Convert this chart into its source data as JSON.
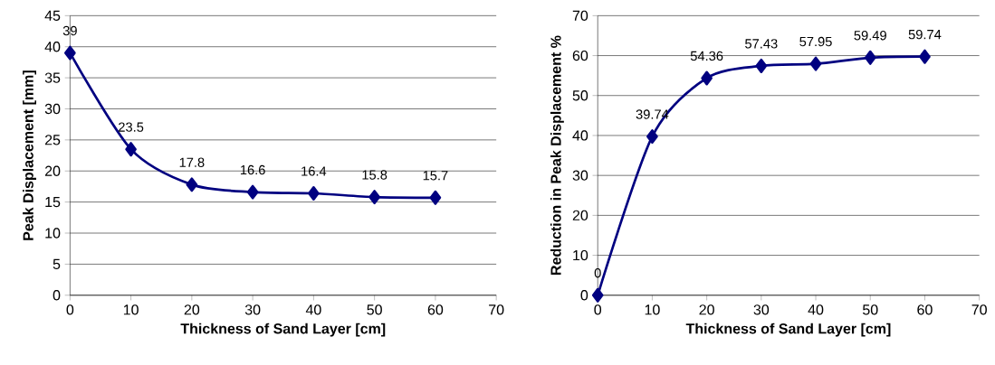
{
  "chart_data": [
    {
      "type": "line",
      "xlabel": "Thickness of Sand Layer [cm]",
      "ylabel": "Peak Displacement [mm]",
      "x": [
        0,
        10,
        20,
        30,
        40,
        50,
        60
      ],
      "series": [
        {
          "color": "#000080",
          "values": [
            39,
            23.5,
            17.8,
            16.6,
            16.4,
            15.8,
            15.7
          ]
        }
      ],
      "xlim": [
        0,
        70
      ],
      "xticks": [
        0,
        10,
        20,
        30,
        40,
        50,
        60,
        70
      ],
      "ylim": [
        0,
        45
      ],
      "yticks": [
        0,
        5,
        10,
        15,
        20,
        25,
        30,
        35,
        40,
        45
      ],
      "grid": "y",
      "marker": "diamond",
      "line_style": "solid",
      "data_labels": true
    },
    {
      "type": "line",
      "xlabel": "Thickness of Sand Layer [cm]",
      "ylabel": "Reduction in  Peak Displacement %",
      "x": [
        0,
        10,
        20,
        30,
        40,
        50,
        60
      ],
      "series": [
        {
          "color": "#000080",
          "values": [
            0,
            39.74,
            54.36,
            57.43,
            57.95,
            59.49,
            59.74
          ]
        }
      ],
      "xlim": [
        0,
        70
      ],
      "xticks": [
        0,
        10,
        20,
        30,
        40,
        50,
        60,
        70
      ],
      "ylim": [
        0,
        70
      ],
      "yticks": [
        0,
        10,
        20,
        30,
        40,
        50,
        60,
        70
      ],
      "grid": "y",
      "marker": "diamond",
      "line_style": "solid",
      "data_labels": true
    }
  ]
}
